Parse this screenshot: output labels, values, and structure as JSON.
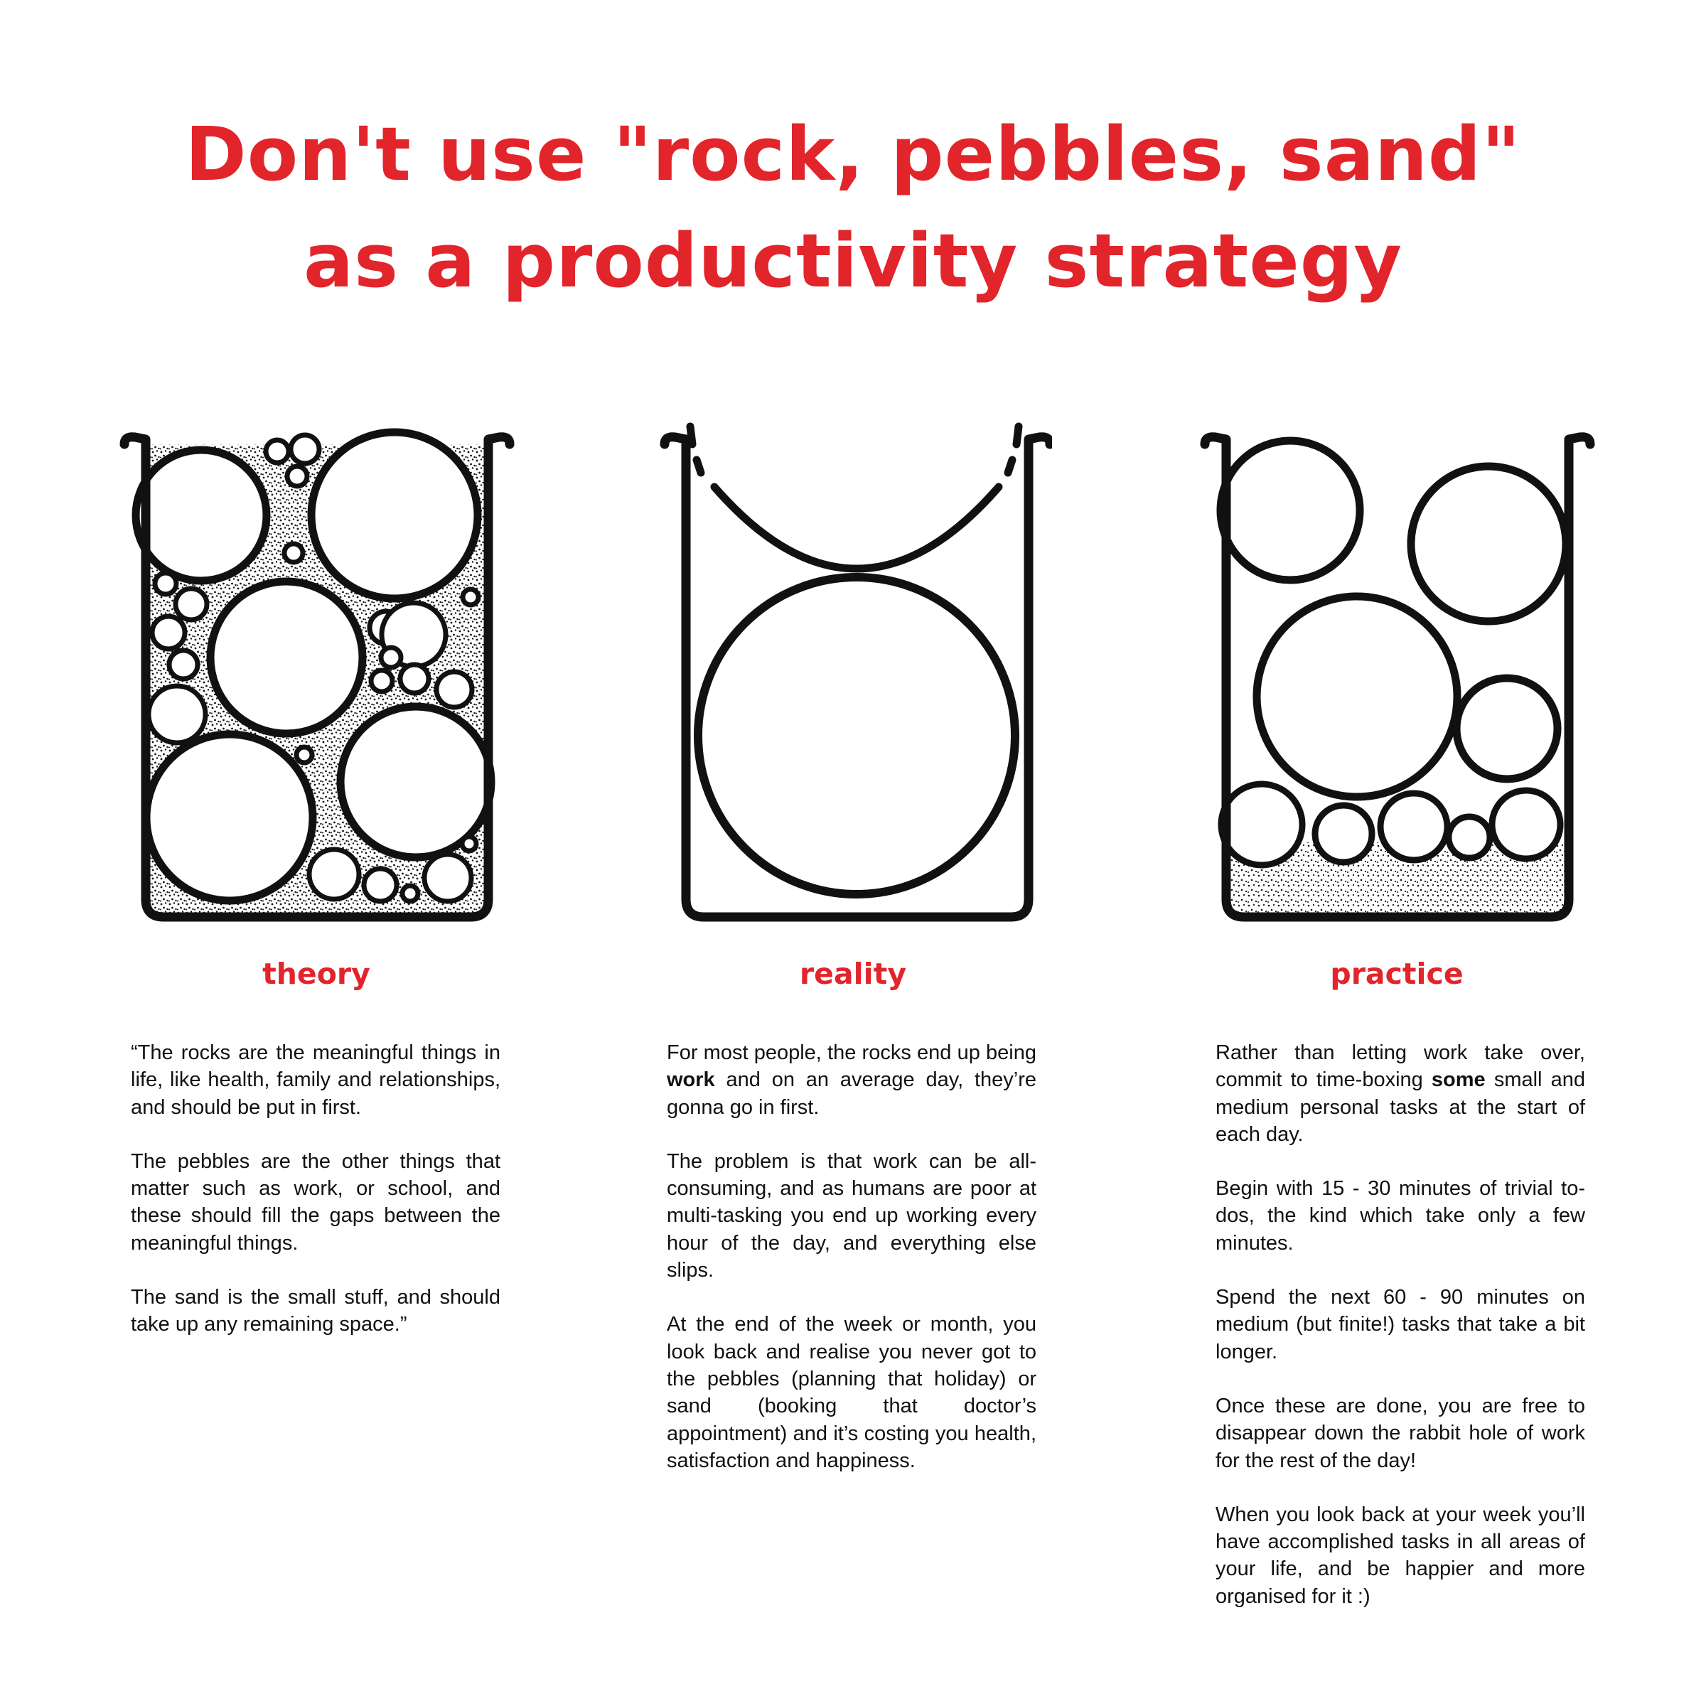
{
  "title": {
    "line1": "Don't use \"rock, pebbles, sand\"",
    "line2": "as a productivity strategy"
  },
  "columns": {
    "theory": {
      "heading": "theory",
      "paragraphs": [
        "“The rocks are the meaningful things in life, like health, family and relationships, and should be put in first.",
        "The pebbles are the other things that matter such as work, or school, and these should fill the gaps between the meaningful things.",
        "The sand is the small stuff, and should take up any remaining space.”"
      ]
    },
    "reality": {
      "heading": "reality",
      "p1_a": "For most people, the rocks end up being ",
      "p1_bold": "work",
      "p1_b": " and on an average day, they’re gonna go in first.",
      "p2": "The problem is that work can be all-consuming, and as humans are poor at multi-tasking you end up working every hour of the day, and everything else slips.",
      "p3": "At the end of the week or month, you look back and realise you never got to the pebbles (planning that holiday) or sand (booking that doctor’s appointment) and it’s costing you health, satisfaction and happiness."
    },
    "practice": {
      "heading": "practice",
      "p1_a": "Rather than letting work take over, commit to time-boxing ",
      "p1_bold": "some",
      "p1_b": " small and medium personal tasks at the start of each day.",
      "p2": "Begin with 15 - 30 minutes of trivial to-dos, the kind which take only a few minutes.",
      "p3": "Spend the next 60 - 90 minutes on medium (but finite!) tasks that take a bit longer.",
      "p4": "Once these are done, you are free to disappear down the rabbit hole of work for the rest of the day!",
      "p5": "When you look back at your week you’ll have accomplished tasks in all areas of your life, and be happier and more organised for it :)"
    }
  },
  "colors": {
    "accent": "#e2242b",
    "ink": "#111111"
  }
}
